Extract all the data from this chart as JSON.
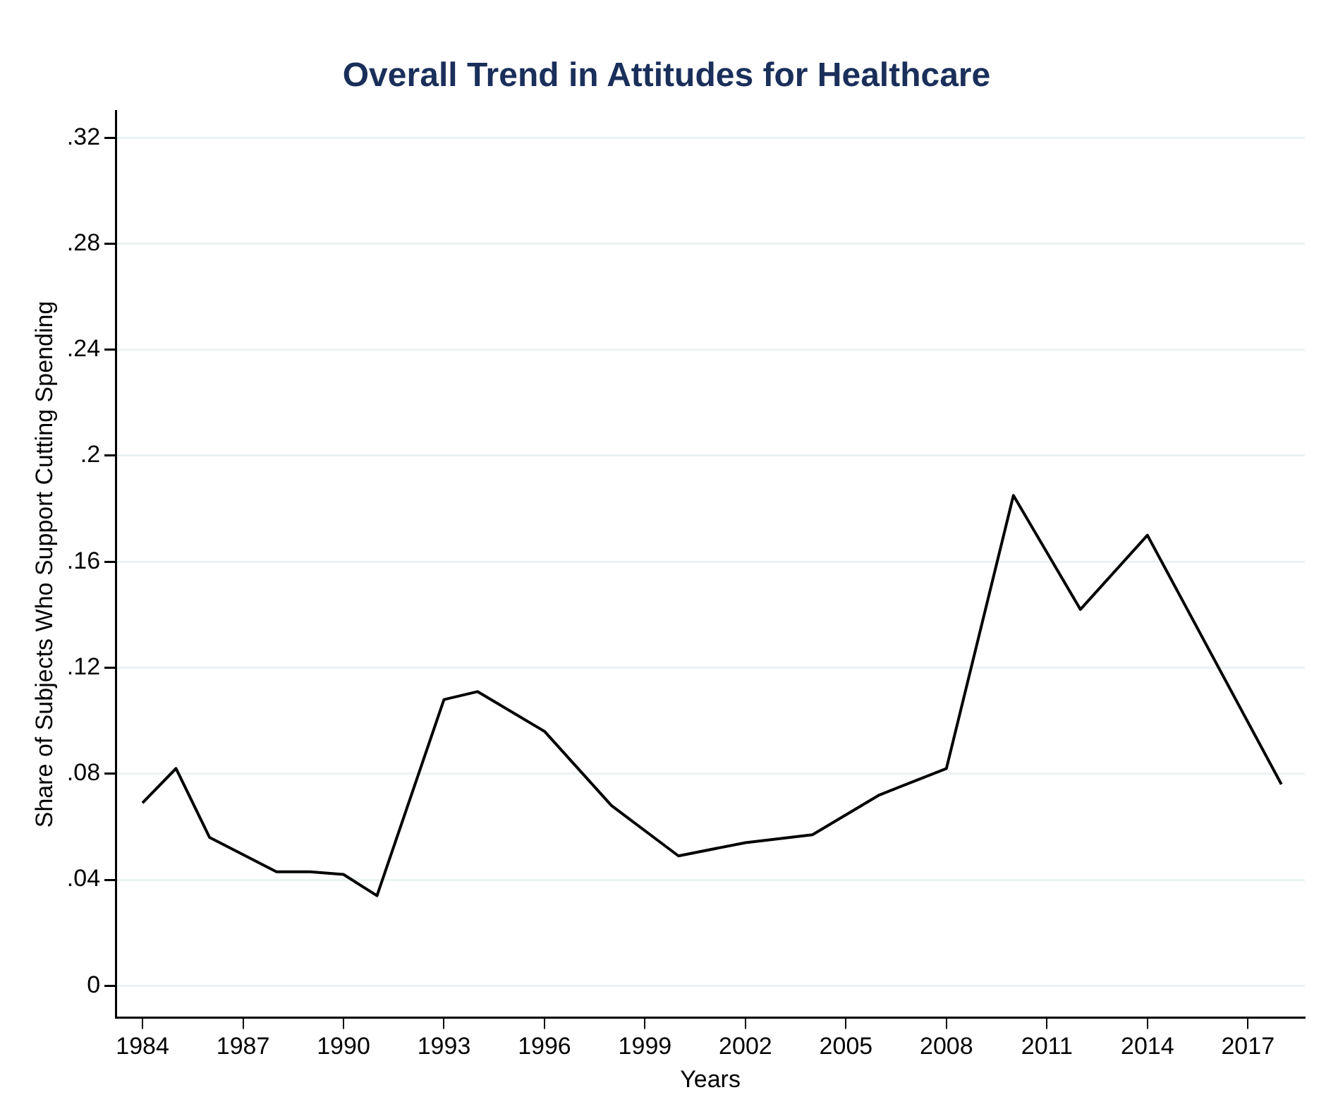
{
  "chart_data": {
    "type": "line",
    "title": "Overall Trend in Attitudes for Healthcare",
    "xlabel": "Years",
    "ylabel": "Share of Subjects Who Support Cutting Spending",
    "x": [
      1984,
      1985,
      1986,
      1988,
      1989,
      1990,
      1991,
      1993,
      1994,
      1996,
      1998,
      2000,
      2002,
      2004,
      2006,
      2008,
      2010,
      2012,
      2014,
      2018
    ],
    "series": [
      {
        "color": "#000000",
        "values": [
          0.069,
          0.082,
          0.056,
          0.043,
          0.043,
          0.042,
          0.034,
          0.108,
          0.111,
          0.096,
          0.068,
          0.049,
          0.054,
          0.057,
          0.072,
          0.082,
          0.185,
          0.142,
          0.17,
          0.076
        ]
      }
    ],
    "xlim": [
      1983.2,
      2018.7
    ],
    "xticks": [
      1984,
      1987,
      1990,
      1993,
      1996,
      1999,
      2002,
      2005,
      2008,
      2011,
      2014,
      2017
    ],
    "ylim": [
      -0.012,
      0.33
    ],
    "yticks": [
      0,
      {
        "value": 0.04,
        "label": ".04"
      },
      {
        "value": 0.08,
        "label": ".08"
      },
      {
        "value": 0.12,
        "label": ".12"
      },
      {
        "value": 0.16,
        "label": ".16"
      },
      {
        "value": 0.2,
        "label": ".2"
      },
      {
        "value": 0.24,
        "label": ".24"
      },
      {
        "value": 0.28,
        "label": ".28"
      },
      {
        "value": 0.32,
        "label": ".32"
      }
    ],
    "grid": "y",
    "legend": false,
    "marker": "none",
    "line_style": "solid"
  }
}
